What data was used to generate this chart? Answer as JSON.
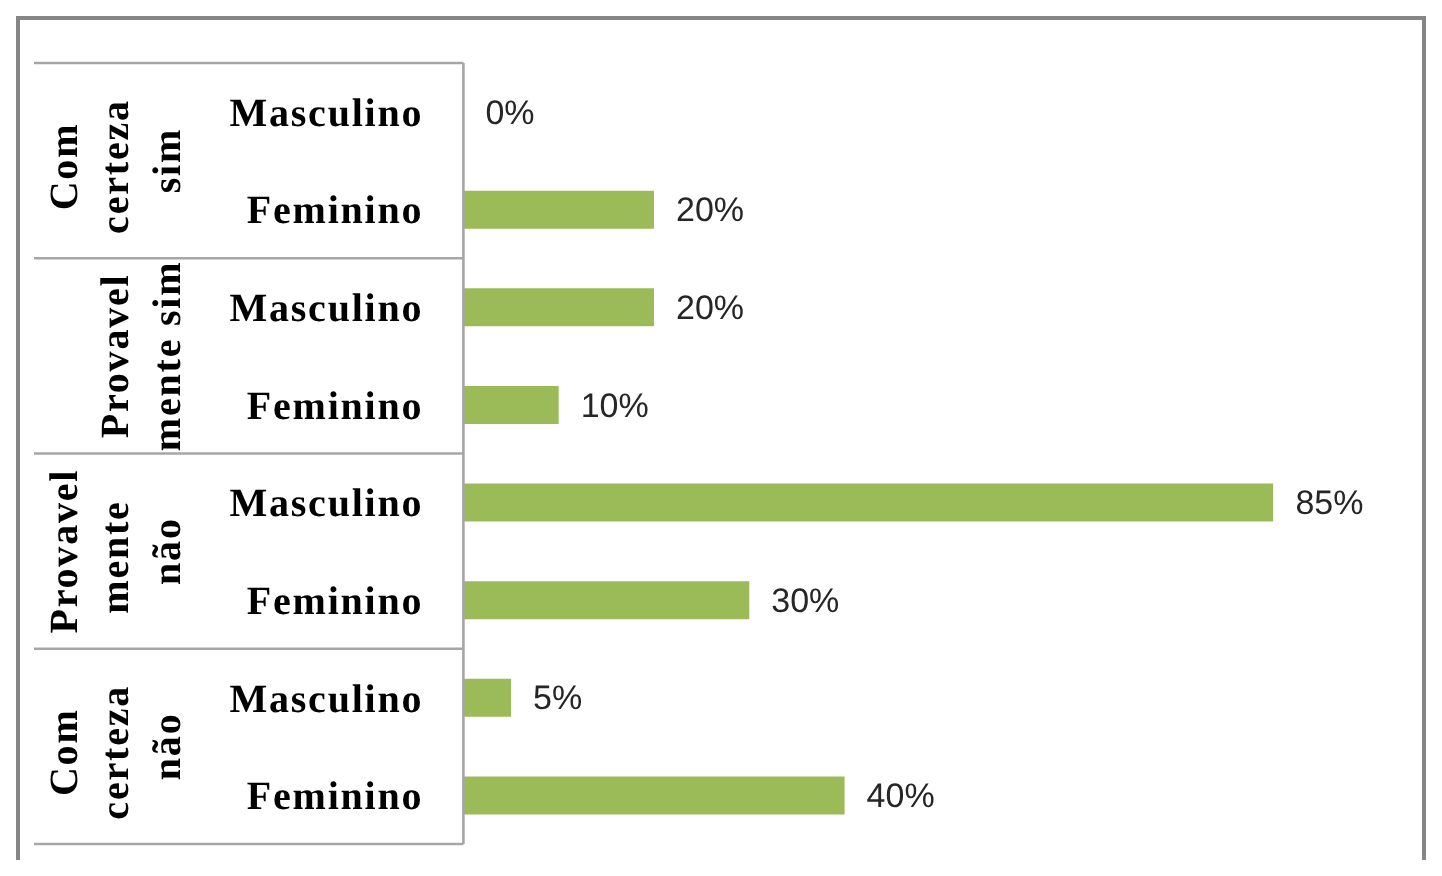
{
  "chart_data": {
    "type": "bar",
    "orientation": "horizontal",
    "categories": [
      "Masculino",
      "Feminino",
      "Masculino",
      "Feminino",
      "Masculino",
      "Feminino",
      "Masculino",
      "Feminino"
    ],
    "annotations": [
      "Com certeza sim",
      "Provavelmente sim",
      "Provavelmente não",
      "Com certeza não"
    ],
    "values": [
      0,
      20,
      20,
      10,
      85,
      30,
      5,
      40
    ],
    "value_labels": [
      "0%",
      "20%",
      "20%",
      "10%",
      "85%",
      "30%",
      "5%",
      "40%"
    ],
    "color": "#9bbb59",
    "tick_labels": "y"
  }
}
